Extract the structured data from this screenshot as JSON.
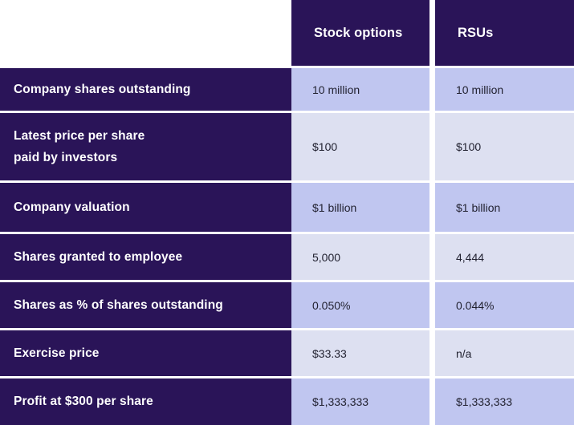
{
  "table": {
    "headers": [
      {
        "label": "Stock options"
      },
      {
        "label": "RSUs"
      }
    ],
    "rows": [
      {
        "label": "Company shares outstanding",
        "values": [
          "10 million",
          "10 million"
        ]
      },
      {
        "label": "Latest price per share paid by investors",
        "label_lines": [
          "Latest price per share",
          "paid by investors"
        ],
        "values": [
          "$100",
          "$100"
        ]
      },
      {
        "label": "Company valuation",
        "values": [
          "$1 billion",
          "$1 billion"
        ]
      },
      {
        "label": "Shares granted to employee",
        "values": [
          "5,000",
          "4,444"
        ]
      },
      {
        "label": "Shares as % of shares outstanding",
        "values": [
          "0.050%",
          "0.044%"
        ]
      },
      {
        "label": "Exercise price",
        "values": [
          "$33.33",
          "n/a"
        ]
      },
      {
        "label": "Profit at $300 per share",
        "values": [
          "$1,333,333",
          "$1,333,333"
        ]
      }
    ]
  },
  "colors": {
    "header_bg": "#2a1458",
    "label_bg": "#2a1458",
    "row_shade_dark": "#c0c6f0",
    "row_shade_light": "#dde0f1",
    "header_text": "#ffffff",
    "label_text": "#ffffff",
    "value_text": "#222231",
    "separator": "#ffffff"
  },
  "chart_data": {
    "type": "table",
    "title": "",
    "columns": [
      "",
      "Stock options",
      "RSUs"
    ],
    "rows": [
      [
        "Company shares outstanding",
        "10 million",
        "10 million"
      ],
      [
        "Latest price per share paid by investors",
        "$100",
        "$100"
      ],
      [
        "Company valuation",
        "$1 billion",
        "$1 billion"
      ],
      [
        "Shares granted to employee",
        "5,000",
        "4,444"
      ],
      [
        "Shares as % of shares outstanding",
        "0.050%",
        "0.044%"
      ],
      [
        "Exercise price",
        "$33.33",
        "n/a"
      ],
      [
        "Profit at $300 per share",
        "$1,333,333",
        "$1,333,333"
      ]
    ],
    "layout": {
      "grid": "white separators between rows and between value columns",
      "legend": "none",
      "row_shading": "alternating lavender shades on value cells"
    }
  }
}
